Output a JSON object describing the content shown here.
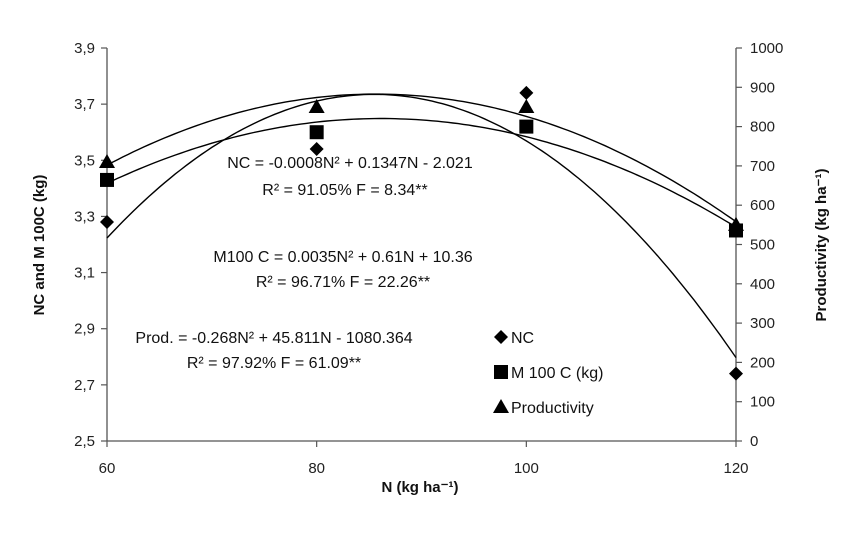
{
  "chart_data": {
    "type": "scatter",
    "x": [
      60,
      80,
      100,
      120
    ],
    "xlabel": "N (kg ha⁻¹)",
    "xlim": [
      60,
      120
    ],
    "xticks": [
      "60",
      "80",
      "100",
      "120"
    ],
    "ylabel_left": "NC  and  M 100C (kg)",
    "ylim_left": [
      2.5,
      3.9
    ],
    "yticks_left": [
      "2,5",
      "2,7",
      "2,9",
      "3,1",
      "3,3",
      "3,5",
      "3,7",
      "3,9"
    ],
    "ylabel_right": "Productivity (kg ha⁻¹)",
    "ylim_right": [
      0,
      1000
    ],
    "yticks_right": [
      "0",
      "100",
      "200",
      "300",
      "400",
      "500",
      "600",
      "700",
      "800",
      "900",
      "1000"
    ],
    "grid": false,
    "legend_position": "bottom-right",
    "series": [
      {
        "name": "NC",
        "marker": "diamond",
        "axis": "left",
        "values": [
          3.28,
          3.54,
          3.74,
          2.74
        ]
      },
      {
        "name": "M 100 C (kg)",
        "marker": "square",
        "axis": "left",
        "values": [
          3.43,
          3.6,
          3.62,
          3.25
        ]
      },
      {
        "name": "Productivity",
        "marker": "triangle",
        "axis": "right",
        "values": [
          710,
          850,
          850,
          550
        ]
      }
    ],
    "annotations": [
      {
        "line1": "NC = -0.0008N² + 0.1347N - 2.021",
        "line2": "R² = 91.05%        F = 8.34**"
      },
      {
        "line1": "M100 C = 0.0035N² + 0.61N + 10.36",
        "line2": "R² = 96.71%        F = 22.26**"
      },
      {
        "line1": "Prod. = -0.268N² + 45.811N - 1080.364",
        "line2": "R² = 97.92%      F = 61.09**"
      }
    ],
    "colors": {
      "marks": "#000000",
      "axes": "#555555"
    }
  }
}
